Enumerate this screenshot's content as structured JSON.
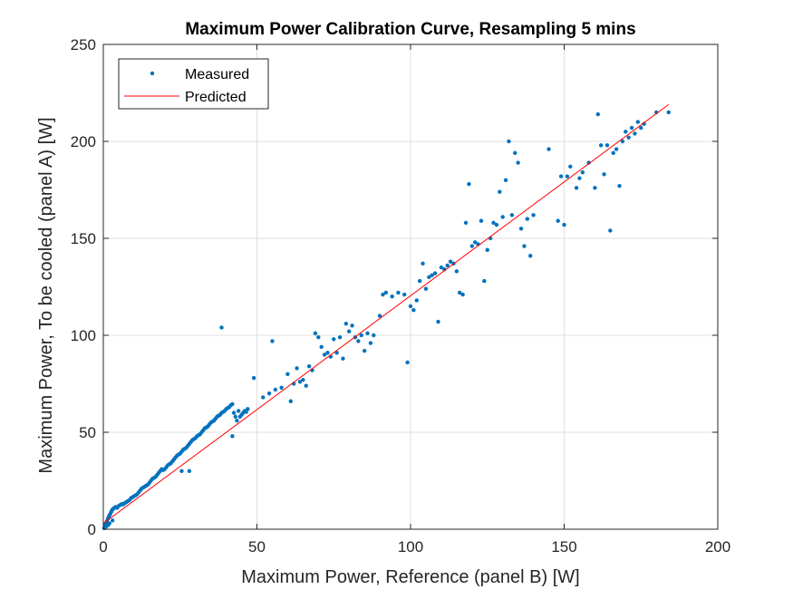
{
  "chart_data": {
    "type": "scatter",
    "title": "Maximum Power Calibration Curve, Resampling 5 mins",
    "xlabel": "Maximum Power, Reference (panel B) [W]",
    "ylabel": "Maximum Power, To be cooled (panel A) [W]",
    "xlim": [
      0,
      200
    ],
    "ylim": [
      0,
      250
    ],
    "xticks": [
      "0",
      "50",
      "100",
      "150",
      "200"
    ],
    "yticks": [
      "0",
      "50",
      "100",
      "150",
      "200",
      "250"
    ],
    "grid": true,
    "legend_position": "top-left",
    "colors": {
      "measured": "#0072BD",
      "predicted": "#FF0000"
    },
    "series": [
      {
        "name": "Measured",
        "style": "points",
        "points": [
          [
            0.3,
            0.5
          ],
          [
            0.5,
            1.5
          ],
          [
            0.7,
            2.8
          ],
          [
            1.0,
            3.5
          ],
          [
            1.2,
            4.2
          ],
          [
            1.5,
            5.5
          ],
          [
            1.8,
            6.5
          ],
          [
            2.0,
            7.2
          ],
          [
            2.3,
            8.0
          ],
          [
            2.6,
            9.0
          ],
          [
            2.9,
            10.0
          ],
          [
            3.2,
            10.5
          ],
          [
            3.6,
            11.0
          ],
          [
            4.0,
            11.5
          ],
          [
            4.5,
            11.0
          ],
          [
            5.0,
            12.0
          ],
          [
            5.5,
            12.5
          ],
          [
            6.0,
            13.0
          ],
          [
            6.5,
            12.8
          ],
          [
            7.0,
            13.5
          ],
          [
            7.5,
            14.0
          ],
          [
            8.0,
            14.5
          ],
          [
            8.5,
            15.0
          ],
          [
            9.0,
            16.0
          ],
          [
            9.5,
            16.5
          ],
          [
            10.0,
            17.0
          ],
          [
            10.5,
            17.5
          ],
          [
            11.0,
            18.0
          ],
          [
            11.5,
            19.0
          ],
          [
            12.0,
            20.0
          ],
          [
            12.5,
            21.0
          ],
          [
            13.0,
            21.5
          ],
          [
            13.5,
            22.0
          ],
          [
            14.0,
            22.5
          ],
          [
            14.5,
            23.0
          ],
          [
            15.0,
            24.0
          ],
          [
            15.5,
            25.0
          ],
          [
            16.0,
            26.0
          ],
          [
            16.5,
            26.5
          ],
          [
            17.0,
            27.0
          ],
          [
            17.5,
            28.0
          ],
          [
            18.0,
            29.0
          ],
          [
            18.5,
            30.0
          ],
          [
            19.0,
            31.0
          ],
          [
            19.5,
            30.5
          ],
          [
            20.0,
            31.0
          ],
          [
            20.5,
            32.0
          ],
          [
            21.0,
            33.0
          ],
          [
            21.5,
            33.5
          ],
          [
            22.0,
            34.0
          ],
          [
            22.5,
            35.0
          ],
          [
            23.0,
            36.0
          ],
          [
            23.5,
            37.0
          ],
          [
            24.0,
            38.0
          ],
          [
            24.5,
            38.5
          ],
          [
            25.0,
            39.0
          ],
          [
            25.5,
            40.0
          ],
          [
            26.0,
            41.0
          ],
          [
            26.5,
            41.5
          ],
          [
            27.0,
            42.0
          ],
          [
            27.5,
            43.0
          ],
          [
            28.0,
            44.0
          ],
          [
            28.5,
            45.0
          ],
          [
            29.0,
            46.0
          ],
          [
            29.5,
            46.5
          ],
          [
            30.0,
            47.0
          ],
          [
            30.5,
            48.0
          ],
          [
            31.0,
            48.5
          ],
          [
            31.5,
            49.0
          ],
          [
            32.0,
            50.0
          ],
          [
            32.5,
            51.0
          ],
          [
            33.0,
            52.0
          ],
          [
            33.5,
            52.5
          ],
          [
            34.0,
            53.0
          ],
          [
            34.5,
            54.0
          ],
          [
            35.0,
            55.0
          ],
          [
            35.5,
            55.5
          ],
          [
            36.0,
            56.0
          ],
          [
            36.5,
            57.0
          ],
          [
            37.0,
            58.0
          ],
          [
            37.5,
            58.5
          ],
          [
            38.0,
            59.0
          ],
          [
            38.5,
            60.0
          ],
          [
            39.0,
            60.5
          ],
          [
            39.5,
            61.0
          ],
          [
            40.0,
            62.0
          ],
          [
            40.5,
            62.5
          ],
          [
            41.0,
            63.0
          ],
          [
            41.5,
            64.0
          ],
          [
            42.0,
            64.5
          ],
          [
            42.5,
            60.0
          ],
          [
            43.0,
            58.0
          ],
          [
            43.5,
            56.0
          ],
          [
            44.0,
            61.0
          ],
          [
            44.5,
            58.0
          ],
          [
            45.0,
            59.0
          ],
          [
            45.5,
            60.0
          ],
          [
            46.0,
            61.0
          ],
          [
            46.5,
            60.5
          ],
          [
            47.0,
            62.0
          ],
          [
            38.5,
            104.0
          ],
          [
            55.0,
            97.0
          ],
          [
            42.0,
            48.0
          ],
          [
            25.5,
            30.0
          ],
          [
            28.0,
            30.0
          ],
          [
            49.0,
            78.0
          ],
          [
            52.0,
            68.0
          ],
          [
            54.0,
            70.0
          ],
          [
            56.0,
            72.0
          ],
          [
            58.0,
            73.0
          ],
          [
            60.0,
            80.0
          ],
          [
            61.0,
            66.0
          ],
          [
            62.0,
            75.0
          ],
          [
            63.0,
            83.0
          ],
          [
            64.0,
            76.0
          ],
          [
            65.0,
            77.0
          ],
          [
            66.0,
            74.0
          ],
          [
            67.0,
            84.0
          ],
          [
            68.0,
            82.0
          ],
          [
            69.0,
            101.0
          ],
          [
            70.0,
            99.0
          ],
          [
            71.0,
            94.0
          ],
          [
            72.0,
            90.0
          ],
          [
            73.0,
            91.0
          ],
          [
            74.0,
            89.0
          ],
          [
            75.0,
            98.0
          ],
          [
            76.0,
            91.0
          ],
          [
            77.0,
            99.0
          ],
          [
            78.0,
            88.0
          ],
          [
            79.0,
            106.0
          ],
          [
            80.0,
            102.0
          ],
          [
            81.0,
            105.0
          ],
          [
            82.0,
            99.0
          ],
          [
            83.0,
            97.0
          ],
          [
            84.0,
            100.0
          ],
          [
            85.0,
            92.0
          ],
          [
            86.0,
            101.0
          ],
          [
            87.0,
            96.0
          ],
          [
            88.0,
            100.0
          ],
          [
            90.0,
            110.0
          ],
          [
            91.0,
            121.0
          ],
          [
            92.0,
            122.0
          ],
          [
            94.0,
            120.0
          ],
          [
            96.0,
            122.0
          ],
          [
            98.0,
            121.0
          ],
          [
            99.0,
            86.0
          ],
          [
            100.0,
            115.0
          ],
          [
            101.0,
            113.0
          ],
          [
            102.0,
            118.0
          ],
          [
            103.0,
            128.0
          ],
          [
            104.0,
            137.0
          ],
          [
            105.0,
            124.0
          ],
          [
            106.0,
            130.0
          ],
          [
            107.0,
            131.0
          ],
          [
            108.0,
            132.0
          ],
          [
            109.0,
            107.0
          ],
          [
            110.0,
            135.0
          ],
          [
            111.0,
            134.0
          ],
          [
            112.0,
            136.0
          ],
          [
            113.0,
            138.0
          ],
          [
            114.0,
            137.0
          ],
          [
            115.0,
            133.0
          ],
          [
            116.0,
            122.0
          ],
          [
            117.0,
            121.0
          ],
          [
            118.0,
            158.0
          ],
          [
            119.0,
            178.0
          ],
          [
            120.0,
            146.0
          ],
          [
            121.0,
            148.0
          ],
          [
            122.0,
            147.0
          ],
          [
            123.0,
            159.0
          ],
          [
            124.0,
            128.0
          ],
          [
            125.0,
            144.0
          ],
          [
            126.0,
            150.0
          ],
          [
            127.0,
            158.0
          ],
          [
            128.0,
            157.0
          ],
          [
            129.0,
            174.0
          ],
          [
            130.0,
            161.0
          ],
          [
            131.0,
            180.0
          ],
          [
            132.0,
            200.0
          ],
          [
            133.0,
            162.0
          ],
          [
            134.0,
            194.0
          ],
          [
            135.0,
            189.0
          ],
          [
            136.0,
            155.0
          ],
          [
            137.0,
            146.0
          ],
          [
            138.0,
            160.0
          ],
          [
            139.0,
            141.0
          ],
          [
            140.0,
            162.0
          ],
          [
            145.0,
            196.0
          ],
          [
            148.0,
            159.0
          ],
          [
            149.0,
            182.0
          ],
          [
            150.0,
            157.0
          ],
          [
            151.0,
            182.0
          ],
          [
            152.0,
            187.0
          ],
          [
            154.0,
            176.0
          ],
          [
            155.0,
            181.0
          ],
          [
            156.0,
            184.0
          ],
          [
            158.0,
            189.0
          ],
          [
            160.0,
            176.0
          ],
          [
            161.0,
            214.0
          ],
          [
            162.0,
            198.0
          ],
          [
            163.0,
            183.0
          ],
          [
            164.0,
            198.0
          ],
          [
            165.0,
            154.0
          ],
          [
            166.0,
            194.0
          ],
          [
            167.0,
            196.0
          ],
          [
            168.0,
            177.0
          ],
          [
            169.0,
            200.0
          ],
          [
            170.0,
            205.0
          ],
          [
            171.0,
            202.0
          ],
          [
            172.0,
            207.0
          ],
          [
            173.0,
            204.0
          ],
          [
            174.0,
            210.0
          ],
          [
            175.0,
            207.0
          ],
          [
            176.0,
            209.0
          ],
          [
            180.0,
            215.0
          ],
          [
            184.0,
            215.0
          ],
          [
            1.5,
            2.0
          ],
          [
            2.0,
            3.0
          ],
          [
            3.0,
            4.5
          ],
          [
            0.8,
            1.2
          ]
        ]
      },
      {
        "name": "Predicted",
        "style": "line",
        "points": [
          [
            0,
            3
          ],
          [
            184,
            219
          ]
        ]
      }
    ]
  }
}
